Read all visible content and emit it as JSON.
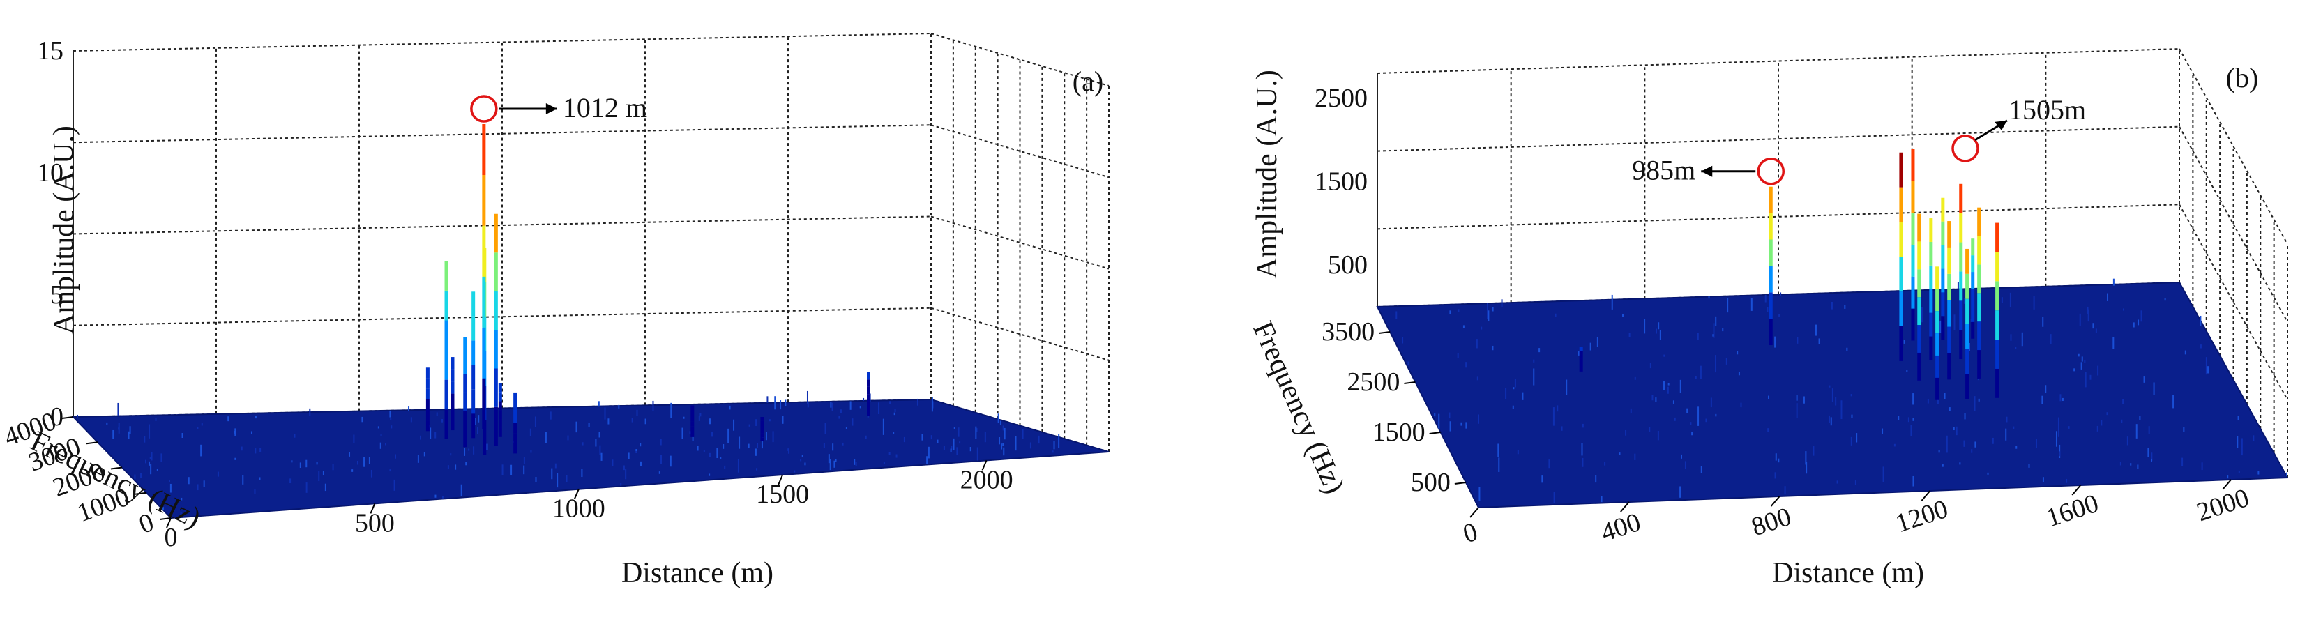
{
  "colors": {
    "surface": "#0a1f8c",
    "surface_edge": "#061670",
    "grid": "#222222",
    "marker": "#e01515",
    "colormap": [
      "#00008f",
      "#0033cc",
      "#0090ff",
      "#18d6e6",
      "#7cf07a",
      "#f0ee20",
      "#ffa000",
      "#ff3b00",
      "#a00000"
    ]
  },
  "chart_data": [
    {
      "type": "3d-surface",
      "panel_label": "(a)",
      "xlabel": "Distance (m)",
      "ylabel": "Frequency (Hz)",
      "zlabel": "Amplitude (A.U.)",
      "xticks": [
        "0",
        "500",
        "1000",
        "1500",
        "2000"
      ],
      "yticks": [
        "0",
        "1000",
        "2000",
        "3000",
        "4000"
      ],
      "zticks": [
        "0",
        "5",
        "10",
        "15"
      ],
      "xlim": [
        0,
        2300
      ],
      "ylim": [
        0,
        4000
      ],
      "zlim": [
        0,
        15
      ],
      "annotation": {
        "text": "1012 m",
        "distance": 1012,
        "amplitude": 12.5
      },
      "peaks": [
        {
          "distance": 865,
          "amplitude": 2.6
        },
        {
          "distance": 880,
          "amplitude": 7.3
        },
        {
          "distance": 895,
          "amplitude": 4.5
        },
        {
          "distance": 912,
          "amplitude": 8.5
        },
        {
          "distance": 930,
          "amplitude": 3.0
        },
        {
          "distance": 950,
          "amplitude": 6.0
        },
        {
          "distance": 975,
          "amplitude": 9.5
        },
        {
          "distance": 990,
          "amplitude": 2.5
        },
        {
          "distance": 1012,
          "amplitude": 12.5
        },
        {
          "distance": 1020,
          "amplitude": 2.2
        },
        {
          "distance": 1480,
          "amplitude": 1.3
        },
        {
          "distance": 1620,
          "amplitude": 1.0
        },
        {
          "distance": 2020,
          "amplitude": 1.8
        }
      ]
    },
    {
      "type": "3d-surface",
      "panel_label": "(b)",
      "xlabel": "Distance (m)",
      "ylabel": "Frequency (Hz)",
      "zlabel": "Amplitude (A.U.)",
      "xticks": [
        "0",
        "400",
        "800",
        "1200",
        "1600",
        "2000"
      ],
      "yticks": [
        "500",
        "1500",
        "2500",
        "3500"
      ],
      "zticks": [
        "500",
        "1500",
        "2500"
      ],
      "xlim": [
        0,
        2150
      ],
      "ylim": [
        0,
        4000
      ],
      "zlim": [
        0,
        2800
      ],
      "annotations": [
        {
          "text": "985m",
          "distance": 985,
          "amplitude": 1900
        },
        {
          "text": "1505m",
          "distance": 1505,
          "amplitude": 2100
        }
      ],
      "peaks": [
        {
          "distance": 985,
          "amplitude": 1900
        },
        {
          "distance": 1305,
          "amplitude": 2500
        },
        {
          "distance": 1325,
          "amplitude": 2000
        },
        {
          "distance": 1345,
          "amplitude": 1600
        },
        {
          "distance": 1365,
          "amplitude": 2300
        },
        {
          "distance": 1385,
          "amplitude": 1700
        },
        {
          "distance": 1405,
          "amplitude": 1900
        },
        {
          "distance": 1425,
          "amplitude": 1800
        },
        {
          "distance": 1445,
          "amplitude": 1700
        },
        {
          "distance": 1465,
          "amplitude": 2100
        },
        {
          "distance": 1485,
          "amplitude": 2050
        },
        {
          "distance": 1505,
          "amplitude": 2100
        },
        {
          "distance": 1525,
          "amplitude": 1200
        },
        {
          "distance": 450,
          "amplitude": 300
        }
      ]
    }
  ]
}
